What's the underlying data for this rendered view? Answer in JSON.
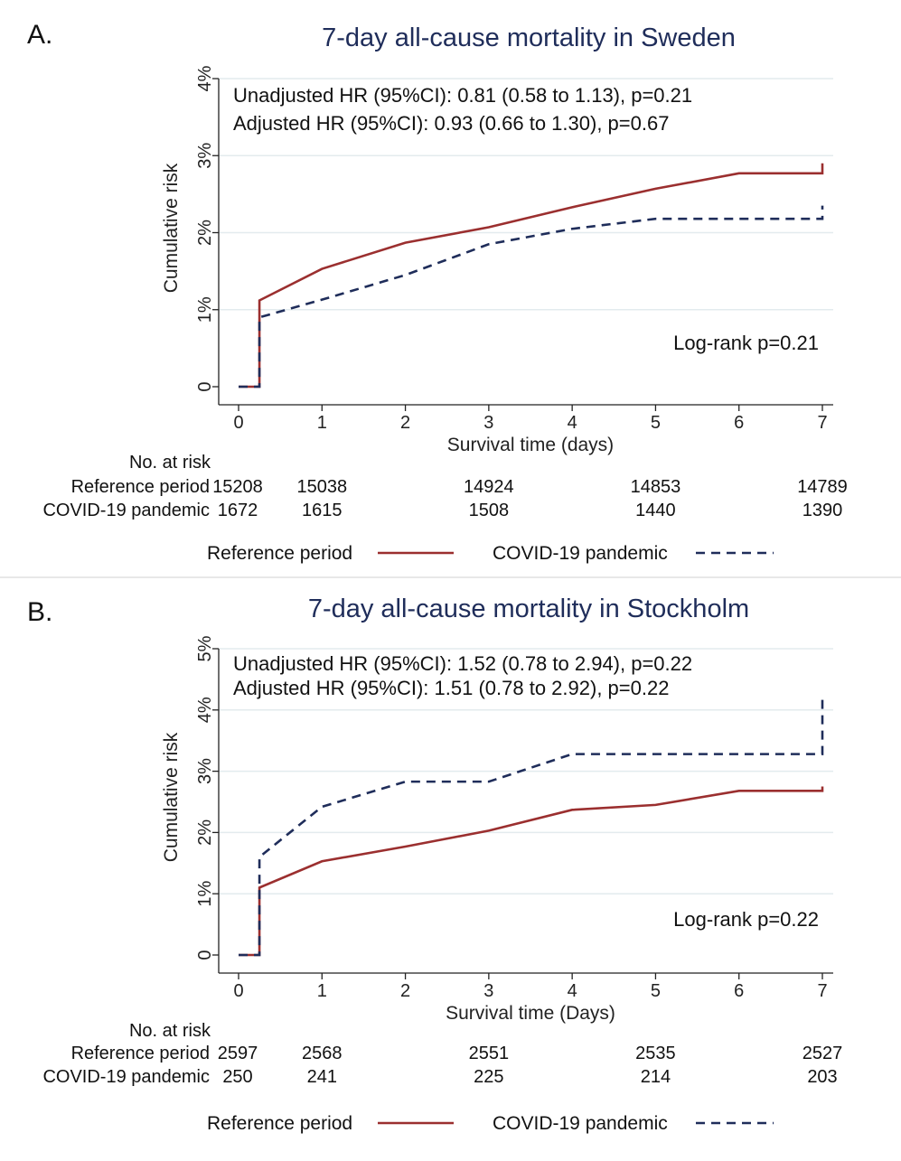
{
  "chart_data": [
    {
      "type": "line",
      "step": true,
      "panel_label": "A.",
      "title": "7-day all-cause mortality in Sweden",
      "xlabel": "Survival time (days)",
      "ylabel": "Cumulative risk",
      "xlim": [
        0,
        7
      ],
      "ylim": [
        0,
        4
      ],
      "x_ticks": [
        0,
        1,
        2,
        3,
        4,
        5,
        6,
        7
      ],
      "y_ticks": [
        0,
        1,
        2,
        3,
        4
      ],
      "y_tick_labels": [
        "0",
        "1%",
        "2%",
        "3%",
        "4%"
      ],
      "grid": true,
      "legend_position": "bottom",
      "annotations": [
        "Unadjusted HR (95%CI): 0.81 (0.58 to 1.13), p=0.21",
        "Adjusted HR (95%CI): 0.93 (0.66 to 1.30), p=0.67"
      ],
      "logrank": "Log-rank p=0.21",
      "risk_table": {
        "header": "No. at risk",
        "times": [
          0,
          1,
          3,
          5,
          7
        ],
        "rows": [
          {
            "label": "Reference period",
            "values": [
              "15208",
              "15038",
              "14924",
              "14853",
              "14789"
            ]
          },
          {
            "label": "COVID-19 pandemic",
            "values": [
              "1672",
              "1615",
              "1508",
              "1440",
              "1390"
            ]
          }
        ]
      },
      "series": [
        {
          "name": "Reference period",
          "color": "#9b2f2f",
          "dash": "solid",
          "x": [
            0,
            0.25,
            0.25,
            1,
            2,
            3,
            4,
            5,
            6,
            7,
            7
          ],
          "y": [
            0,
            0,
            1.12,
            1.53,
            1.87,
            2.07,
            2.33,
            2.57,
            2.77,
            2.77,
            2.9
          ]
        },
        {
          "name": "COVID-19 pandemic",
          "color": "#1f2d5a",
          "dash": "dashed",
          "x": [
            0,
            0.25,
            0.25,
            1,
            2,
            3,
            4,
            5,
            6,
            7,
            7
          ],
          "y": [
            0,
            0,
            0.9,
            1.13,
            1.45,
            1.85,
            2.05,
            2.18,
            2.18,
            2.18,
            2.35
          ]
        }
      ]
    },
    {
      "type": "line",
      "step": true,
      "panel_label": "B.",
      "title": "7-day all-cause mortality in Stockholm",
      "xlabel": "Survival time (Days)",
      "ylabel": "Cumulative risk",
      "xlim": [
        0,
        7
      ],
      "ylim": [
        0,
        5
      ],
      "x_ticks": [
        0,
        1,
        2,
        3,
        4,
        5,
        6,
        7
      ],
      "y_ticks": [
        0,
        1,
        2,
        3,
        4,
        5
      ],
      "y_tick_labels": [
        "0",
        "1%",
        "2%",
        "3%",
        "4%",
        "5%"
      ],
      "grid": true,
      "legend_position": "bottom",
      "annotations": [
        "Unadjusted HR (95%CI): 1.52 (0.78 to 2.94), p=0.22",
        "Adjusted HR (95%CI): 1.51 (0.78 to 2.92), p=0.22"
      ],
      "logrank": "Log-rank p=0.22",
      "risk_table": {
        "header": "No. at risk",
        "times": [
          0,
          1,
          3,
          5,
          7
        ],
        "rows": [
          {
            "label": "Reference period",
            "values": [
              "2597",
              "2568",
              "2551",
              "2535",
              "2527"
            ]
          },
          {
            "label": "COVID-19 pandemic",
            "values": [
              "250",
              "241",
              "225",
              "214",
              "203"
            ]
          }
        ]
      },
      "series": [
        {
          "name": "Reference period",
          "color": "#9b2f2f",
          "dash": "solid",
          "x": [
            0,
            0.25,
            0.25,
            1,
            2,
            3,
            4,
            5,
            6,
            7,
            7
          ],
          "y": [
            0,
            0,
            1.1,
            1.53,
            1.77,
            2.03,
            2.37,
            2.45,
            2.68,
            2.68,
            2.75
          ]
        },
        {
          "name": "COVID-19 pandemic",
          "color": "#1f2d5a",
          "dash": "dashed",
          "x": [
            0,
            0.25,
            0.25,
            1,
            2,
            3,
            4,
            5,
            6,
            7,
            7
          ],
          "y": [
            0,
            0,
            1.6,
            2.42,
            2.83,
            2.83,
            3.28,
            3.28,
            3.28,
            3.28,
            4.25
          ]
        }
      ]
    }
  ]
}
